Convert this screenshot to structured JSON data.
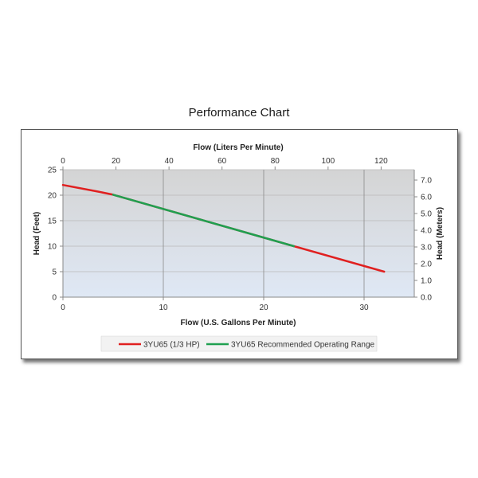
{
  "chart_data": {
    "type": "line",
    "title": "Performance Chart",
    "x_bottom": {
      "label": "Flow (U.S. Gallons Per Minute)",
      "ticks": [
        0,
        10,
        20,
        30
      ],
      "range": [
        0,
        35
      ]
    },
    "x_top": {
      "label": "Flow (Liters Per Minute)",
      "ticks": [
        0,
        20,
        40,
        60,
        80,
        100,
        120
      ],
      "range": [
        0,
        132.5
      ]
    },
    "y_left": {
      "label": "Head (Feet)",
      "ticks": [
        0,
        5,
        10,
        15,
        20,
        25
      ],
      "range": [
        0,
        25
      ]
    },
    "y_right": {
      "label": "Head (Meters)",
      "ticks": [
        "0.0",
        "1.0",
        "2.0",
        "3.0",
        "4.0",
        "5.0",
        "6.0",
        "7.0"
      ],
      "range": [
        0,
        7.62
      ]
    },
    "grid": {
      "vertical": true,
      "horizontal": true
    },
    "legend_position": "bottom",
    "series": [
      {
        "name": "3YU65 (1/3 HP)",
        "color": "#e02020",
        "x": [
          0,
          3.5,
          5,
          23,
          32
        ],
        "y": [
          22,
          20.7,
          20.1,
          10,
          5
        ]
      },
      {
        "name": "3YU65 Recommended Operating Range",
        "color": "#1fa050",
        "x": [
          5,
          23
        ],
        "y": [
          20.1,
          10
        ]
      }
    ]
  }
}
